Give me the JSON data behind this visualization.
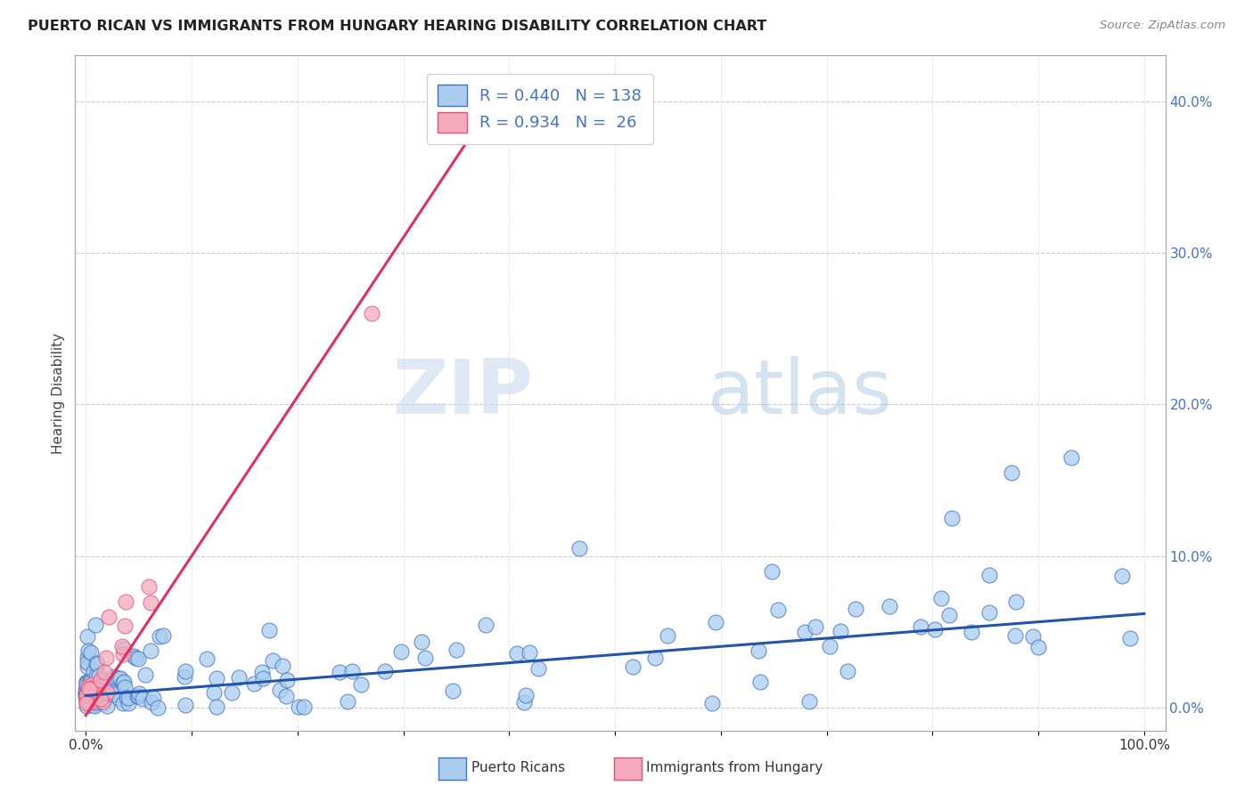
{
  "title": "PUERTO RICAN VS IMMIGRANTS FROM HUNGARY HEARING DISABILITY CORRELATION CHART",
  "source": "Source: ZipAtlas.com",
  "ylabel": "Hearing Disability",
  "y_tick_values": [
    0.0,
    0.1,
    0.2,
    0.3,
    0.4
  ],
  "y_tick_labels": [
    "0.0%",
    "10.0%",
    "20.0%",
    "30.0%",
    "40.0%"
  ],
  "x_tick_values": [
    0.0,
    0.1,
    0.2,
    0.3,
    0.4,
    0.5,
    0.6,
    0.7,
    0.8,
    0.9,
    1.0
  ],
  "xlim": [
    -0.01,
    1.02
  ],
  "ylim": [
    -0.015,
    0.43
  ],
  "blue_R": 0.44,
  "blue_N": 138,
  "pink_R": 0.934,
  "pink_N": 26,
  "blue_fill": "#A8CDEF",
  "pink_fill": "#F4AABB",
  "blue_edge": "#4472C4",
  "pink_edge": "#E8507A",
  "blue_line_color": "#2255AA",
  "pink_line_color": "#E03060",
  "legend_label_blue": "Puerto Ricans",
  "legend_label_pink": "Immigrants from Hungary",
  "watermark_zip": "ZIP",
  "watermark_atlas": "atlas",
  "background_color": "#FFFFFF",
  "blue_line_x0": 0.0,
  "blue_line_x1": 1.0,
  "blue_line_y0": 0.008,
  "blue_line_y1": 0.062,
  "pink_line_x0": 0.0,
  "pink_line_x1": 0.4,
  "pink_line_y0": -0.005,
  "pink_line_y1": 0.415
}
